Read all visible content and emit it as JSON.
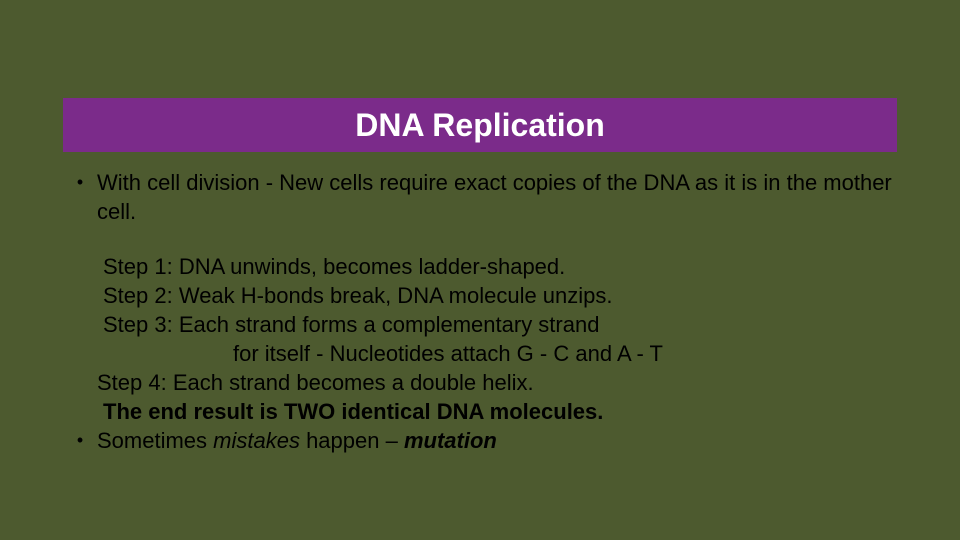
{
  "colors": {
    "background": "#4d5a2f",
    "title_bar": "#7b2b8a",
    "title_text": "#ffffff",
    "body_text": "#000000"
  },
  "typography": {
    "title_fontsize": 32,
    "body_fontsize": 22,
    "font_family": "Arial"
  },
  "title": "DNA Replication",
  "intro": "With cell division -  New cells require exact copies of the DNA as it is in the mother cell.",
  "steps": {
    "s1": "Step 1: DNA unwinds, becomes ladder-shaped.",
    "s2": "Step 2: Weak H-bonds break, DNA molecule unzips.",
    "s3a": "Step 3: Each strand forms a complementary strand",
    "s3b": "for itself - Nucleotides attach G - C and A - T",
    "s4": " Step 4: Each strand becomes a double helix.",
    "result": "The end result is TWO identical DNA molecules."
  },
  "closing": {
    "prefix": "Sometimes ",
    "mistakes": "mistakes",
    "middle": " happen – ",
    "mutation": "mutation"
  },
  "bullet_glyph": "•"
}
